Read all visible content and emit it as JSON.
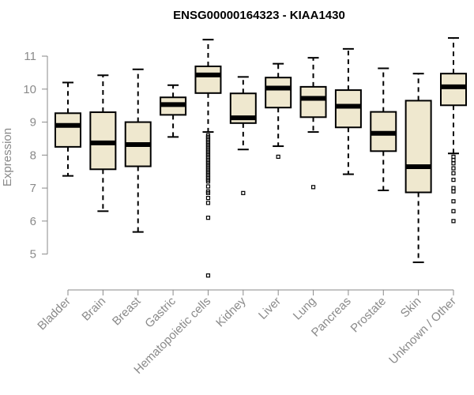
{
  "chart_data": {
    "type": "boxplot",
    "title": "ENSG00000164323 - KIAA1430",
    "ylabel": "Expression",
    "xlabel": "",
    "ylim": [
      4.2,
      11.6
    ],
    "yticks": [
      5,
      6,
      7,
      8,
      9,
      10,
      11
    ],
    "grid": false,
    "colors": {
      "box_fill": "#efe8cf",
      "stroke": "#000000",
      "axis": "#8a8a8a"
    },
    "categories": [
      "Bladder",
      "Brain",
      "Breast",
      "Gastric",
      "Hematopoietic cells",
      "Kidney",
      "Liver",
      "Lung",
      "Pancreas",
      "Prostate",
      "Skin",
      "Unknown / Other"
    ],
    "boxes": [
      {
        "whisker_low": 7.37,
        "q1": 8.25,
        "median": 8.9,
        "q3": 9.27,
        "whisker_high": 10.2,
        "outliers": []
      },
      {
        "whisker_low": 6.3,
        "q1": 7.57,
        "median": 8.37,
        "q3": 9.3,
        "whisker_high": 10.42,
        "outliers": []
      },
      {
        "whisker_low": 5.67,
        "q1": 7.66,
        "median": 8.32,
        "q3": 9.0,
        "whisker_high": 10.6,
        "outliers": []
      },
      {
        "whisker_low": 8.55,
        "q1": 9.22,
        "median": 9.53,
        "q3": 9.75,
        "whisker_high": 10.12,
        "outliers": []
      },
      {
        "whisker_low": 8.7,
        "q1": 9.88,
        "median": 10.43,
        "q3": 10.69,
        "whisker_high": 11.5,
        "outliers": [
          8.6,
          8.55,
          8.5,
          8.45,
          8.4,
          8.35,
          8.3,
          8.25,
          8.2,
          8.15,
          8.1,
          8.05,
          8.0,
          7.95,
          7.9,
          7.85,
          7.8,
          7.75,
          7.7,
          7.65,
          7.6,
          7.55,
          7.5,
          7.45,
          7.4,
          7.35,
          7.3,
          7.25,
          7.2,
          7.05,
          6.9,
          6.85,
          6.7,
          6.55,
          6.1,
          4.35
        ]
      },
      {
        "whisker_low": 8.17,
        "q1": 8.97,
        "median": 9.13,
        "q3": 9.87,
        "whisker_high": 10.37,
        "outliers": [
          6.85
        ]
      },
      {
        "whisker_low": 8.27,
        "q1": 9.44,
        "median": 10.03,
        "q3": 10.35,
        "whisker_high": 10.77,
        "outliers": [
          7.95
        ]
      },
      {
        "whisker_low": 8.7,
        "q1": 9.15,
        "median": 9.72,
        "q3": 10.07,
        "whisker_high": 10.95,
        "outliers": [
          7.03
        ]
      },
      {
        "whisker_low": 7.42,
        "q1": 8.84,
        "median": 9.48,
        "q3": 9.97,
        "whisker_high": 11.22,
        "outliers": []
      },
      {
        "whisker_low": 6.93,
        "q1": 8.12,
        "median": 8.66,
        "q3": 9.31,
        "whisker_high": 10.63,
        "outliers": []
      },
      {
        "whisker_low": 4.75,
        "q1": 6.87,
        "median": 7.65,
        "q3": 9.65,
        "whisker_high": 10.47,
        "outliers": []
      },
      {
        "whisker_low": 8.05,
        "q1": 9.51,
        "median": 10.07,
        "q3": 10.47,
        "whisker_high": 11.55,
        "outliers": [
          7.95,
          7.85,
          7.75,
          7.6,
          7.45,
          7.25,
          7.0,
          6.9,
          6.6,
          6.3,
          6.0
        ]
      }
    ]
  }
}
